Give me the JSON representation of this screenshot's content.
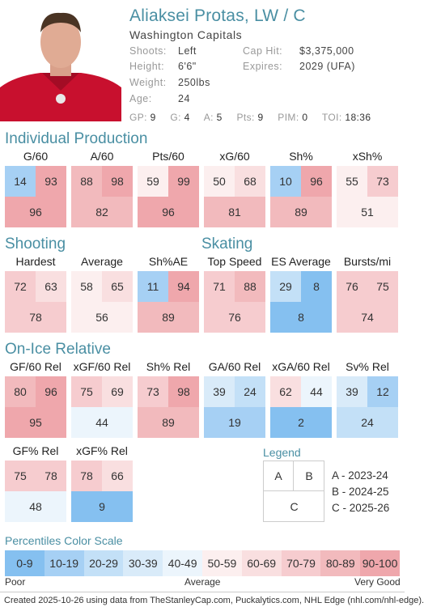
{
  "player": {
    "name": "Aliaksei Protas, LW / C",
    "team": "Washington Capitals",
    "shoots_label": "Shoots:",
    "shoots": "Left",
    "height_label": "Height:",
    "height": "6'6\"",
    "weight_label": "Weight:",
    "weight": "250lbs",
    "age_label": "Age:",
    "age": "24",
    "caphit_label": "Cap Hit:",
    "caphit": "$3,375,000",
    "expires_label": "Expires:",
    "expires": "2029 (UFA)",
    "gp_label": "GP:",
    "gp": "9",
    "g_label": "G:",
    "g": "4",
    "a_label": "A:",
    "a": "5",
    "pts_label": "Pts:",
    "pts": "9",
    "pim_label": "PIM:",
    "pim": "0",
    "toi_label": "TOI:",
    "toi": "18:36"
  },
  "sections": {
    "individual": "Individual Production",
    "shooting": "Shooting",
    "skating": "Skating",
    "onice": "On-Ice Relative"
  },
  "metrics": [
    {
      "id": "g60",
      "label": "G/60",
      "a": 14,
      "b": 93,
      "c": 96
    },
    {
      "id": "a60",
      "label": "A/60",
      "a": 88,
      "b": 98,
      "c": 82
    },
    {
      "id": "pts60",
      "label": "Pts/60",
      "a": 59,
      "b": 99,
      "c": 96
    },
    {
      "id": "xg60",
      "label": "xG/60",
      "a": 50,
      "b": 68,
      "c": 81
    },
    {
      "id": "shpct",
      "label": "Sh%",
      "a": 10,
      "b": 96,
      "c": 89
    },
    {
      "id": "xshpct",
      "label": "xSh%",
      "a": 55,
      "b": 73,
      "c": 51
    },
    {
      "id": "hardest",
      "label": "Hardest",
      "a": 72,
      "b": 63,
      "c": 78
    },
    {
      "id": "average",
      "label": "Average",
      "a": 58,
      "b": 65,
      "c": 56
    },
    {
      "id": "shae",
      "label": "Sh%AE",
      "a": 11,
      "b": 94,
      "c": 89
    },
    {
      "id": "topspeed",
      "label": "Top Speed",
      "a": 71,
      "b": 88,
      "c": 76
    },
    {
      "id": "esavg",
      "label": "ES Average",
      "a": 29,
      "b": 8,
      "c": 8
    },
    {
      "id": "bursts",
      "label": "Bursts/mi",
      "a": 76,
      "b": 75,
      "c": 74
    },
    {
      "id": "gf60rel",
      "label": "GF/60 Rel",
      "a": 80,
      "b": 96,
      "c": 95
    },
    {
      "id": "xgf60rel",
      "label": "xGF/60 Rel",
      "a": 75,
      "b": 69,
      "c": 44
    },
    {
      "id": "shrel",
      "label": "Sh% Rel",
      "a": 73,
      "b": 98,
      "c": 89
    },
    {
      "id": "ga60rel",
      "label": "GA/60 Rel",
      "a": 39,
      "b": 24,
      "c": 19
    },
    {
      "id": "xga60rel",
      "label": "xGA/60 Rel",
      "a": 62,
      "b": 44,
      "c": 2
    },
    {
      "id": "svrel",
      "label": "Sv% Rel",
      "a": 39,
      "b": 12,
      "c": 24
    },
    {
      "id": "gfpctrel",
      "label": "GF% Rel",
      "a": 75,
      "b": 78,
      "c": 48
    },
    {
      "id": "xgfpctrel",
      "label": "xGF% Rel",
      "a": 78,
      "b": 66,
      "c": 9
    }
  ],
  "legend": {
    "title": "Legend",
    "a": "A",
    "b": "B",
    "c": "C",
    "lines": [
      "A - 2023-24",
      "B - 2024-25",
      "C - 2025-26"
    ]
  },
  "scale": {
    "title": "Percentiles Color Scale",
    "bins": [
      "0-9",
      "10-19",
      "20-29",
      "30-39",
      "40-49",
      "50-59",
      "60-69",
      "70-79",
      "80-89",
      "90-100"
    ],
    "colors": [
      "#85c0f0",
      "#a6d0f4",
      "#c3e0f7",
      "#d9ebf9",
      "#ecf5fc",
      "#fcefef",
      "#f9dfe0",
      "#f6cccf",
      "#f2babd",
      "#efa7ac"
    ],
    "poor": "Poor",
    "average": "Average",
    "very_good": "Very Good"
  },
  "footer": "Created 2025-10-26 using data from TheStanleyCap.com, Puckalytics.com, NHL Edge (nhl.com/nhl-edge)."
}
